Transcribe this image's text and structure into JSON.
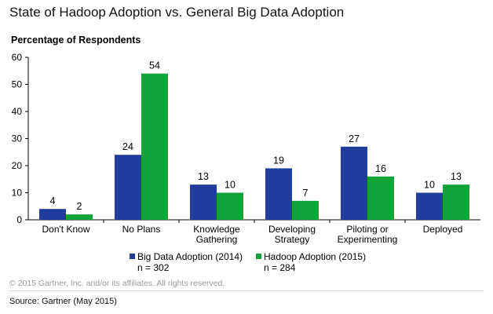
{
  "chart_data": {
    "type": "bar",
    "title": "State of Hadoop Adoption vs. General Big Data Adoption",
    "ylabel": "Percentage of Respondents",
    "xlabel": "",
    "ylim": [
      0,
      60
    ],
    "yticks": [
      0,
      10,
      20,
      30,
      40,
      50,
      60
    ],
    "grid": false,
    "legend_position": "bottom",
    "categories": [
      [
        "Don't Know"
      ],
      [
        "No Plans"
      ],
      [
        "Knowledge",
        "Gathering"
      ],
      [
        "Developing",
        "Strategy"
      ],
      [
        "Piloting or",
        "Experimenting"
      ],
      [
        "Deployed"
      ]
    ],
    "series": [
      {
        "name": "Big Data Adoption (2014)",
        "sample": "n = 302",
        "color": "#1f3c9e",
        "values": [
          4,
          24,
          13,
          19,
          27,
          10
        ]
      },
      {
        "name": "Hadoop Adoption (2015)",
        "sample": "n = 284",
        "color": "#12a33a",
        "values": [
          2,
          54,
          10,
          7,
          16,
          13
        ]
      }
    ]
  },
  "footer": {
    "copyright": "© 2015 Gartner, Inc. and/or its affiliates. All rights reserved.",
    "source": "Source: Gartner (May 2015)"
  }
}
